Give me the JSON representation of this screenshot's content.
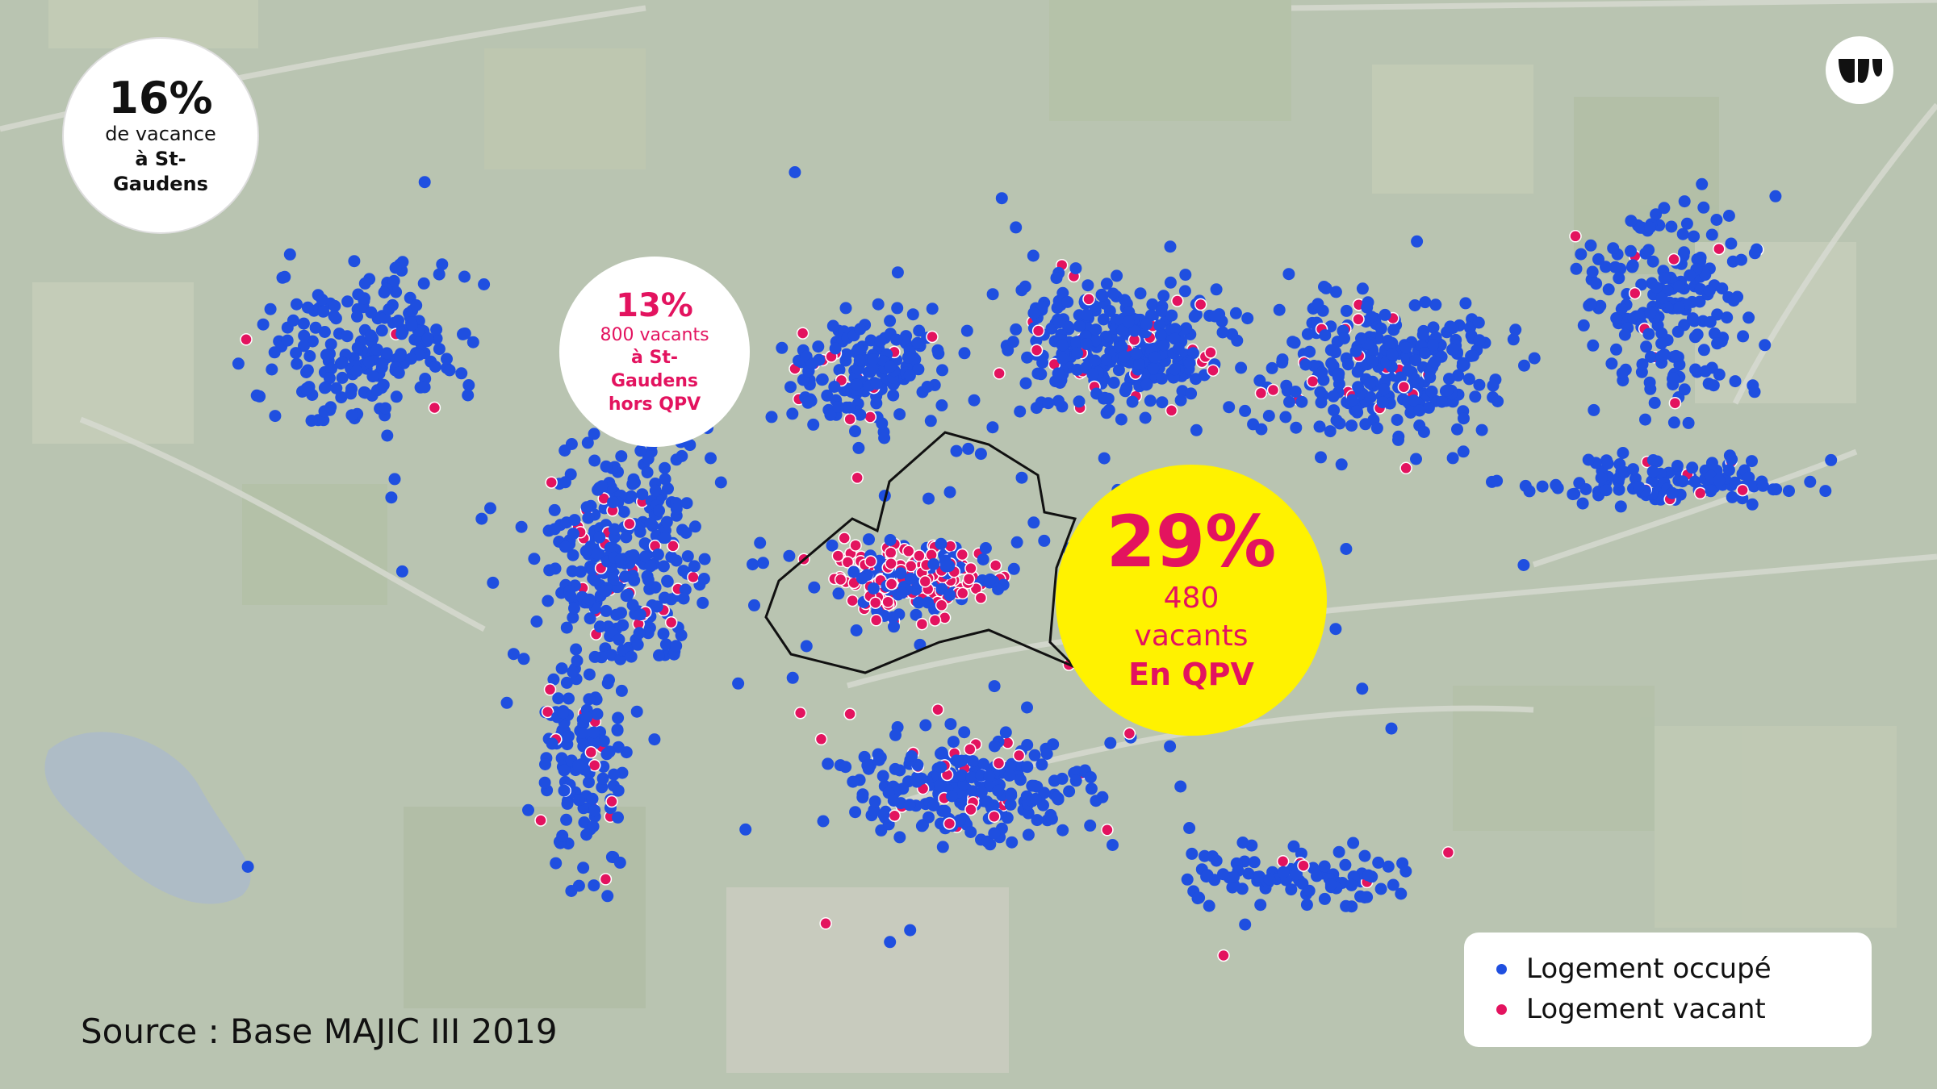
{
  "badges": [
    {
      "value": "16%",
      "lines": [
        "de vacance",
        "à St-",
        "Gaudens"
      ]
    },
    {
      "value": "13%",
      "lines": [
        "800 vacants",
        "à St-",
        "Gaudens",
        "hors QPV"
      ]
    },
    {
      "value": "29%",
      "lines": [
        "480",
        "vacants",
        "En QPV"
      ]
    }
  ],
  "legend": [
    {
      "label": "Logement occupé",
      "color": "#1f4fe0"
    },
    {
      "label": "Logement vacant",
      "color": "#e3135f"
    }
  ],
  "source": "Source : Base MAJIC III 2019"
}
